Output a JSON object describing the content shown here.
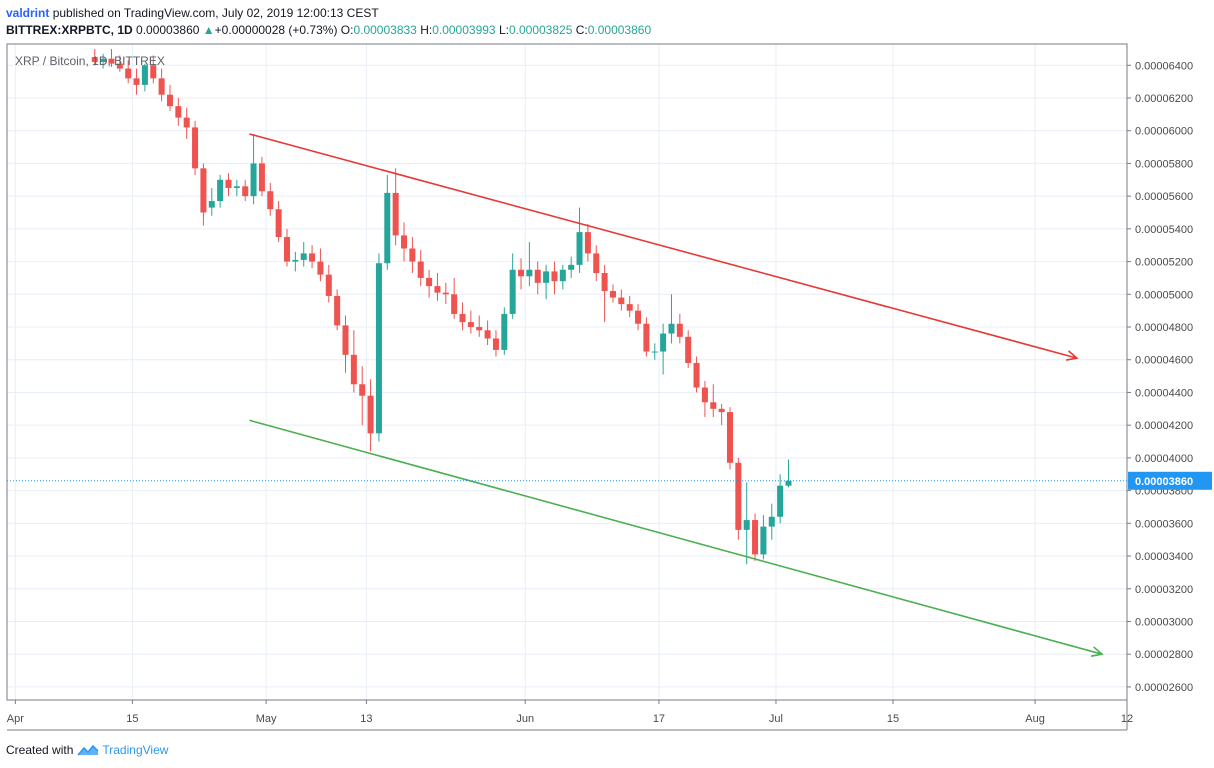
{
  "header": {
    "author": "valdrint",
    "published_text": "published on TradingView.com, July 02, 2019 12:00:13 CEST",
    "symbol": "BITTREX:XRPBTC, 1D",
    "last": "0.00003860",
    "change": "+0.00000028 (+0.73%)",
    "o_label": "O:",
    "o_value": "0.00003833",
    "h_label": "H:",
    "h_value": "0.00003993",
    "l_label": "L:",
    "l_value": "0.00003825",
    "c_label": "C:",
    "c_value": "0.00003860"
  },
  "footer": {
    "created_with": "Created with",
    "brand": "TradingView"
  },
  "colors": {
    "up": "#26a69a",
    "down": "#ef5350",
    "resistance": "#e53935",
    "support": "#4caf50",
    "grid": "#e8eef6",
    "price_line": "#2196f3"
  },
  "chart_data": {
    "type": "candlestick",
    "legend": "XRP / Bitcoin, 1D, BITTREX",
    "y_ticks": [
      "0.00006400",
      "0.00006200",
      "0.00006000",
      "0.00005800",
      "0.00005600",
      "0.00005400",
      "0.00005200",
      "0.00005000",
      "0.00004800",
      "0.00004600",
      "0.00004400",
      "0.00004200",
      "0.00004000",
      "0.00003800",
      "0.00003600",
      "0.00003400",
      "0.00003200",
      "0.00003000",
      "0.00002800",
      "0.00002600"
    ],
    "ylim": [
      2.52e-05,
      6.53e-05
    ],
    "xlim": [
      "2019-03-31",
      "2019-08-12"
    ],
    "x_ticks": [
      {
        "date": "2019-04-01",
        "label": "Apr"
      },
      {
        "date": "2019-04-15",
        "label": "15"
      },
      {
        "date": "2019-05-01",
        "label": "May"
      },
      {
        "date": "2019-05-13",
        "label": "13"
      },
      {
        "date": "2019-06-01",
        "label": "Jun"
      },
      {
        "date": "2019-06-17",
        "label": "17"
      },
      {
        "date": "2019-07-01",
        "label": "Jul"
      },
      {
        "date": "2019-07-15",
        "label": "15"
      },
      {
        "date": "2019-08-01",
        "label": "Aug"
      },
      {
        "date": "2019-08-12",
        "label": "12"
      }
    ],
    "last_price": "0.00003860",
    "candles": [
      {
        "date": "2019-04-10",
        "o": 6.45e-05,
        "h": 6.5e-05,
        "l": 6.4e-05,
        "c": 6.42e-05
      },
      {
        "date": "2019-04-11",
        "o": 6.42e-05,
        "h": 6.47e-05,
        "l": 6.38e-05,
        "c": 6.44e-05
      },
      {
        "date": "2019-04-12",
        "o": 6.44e-05,
        "h": 6.5e-05,
        "l": 6.39e-05,
        "c": 6.41e-05
      },
      {
        "date": "2019-04-13",
        "o": 6.41e-05,
        "h": 6.46e-05,
        "l": 6.36e-05,
        "c": 6.38e-05
      },
      {
        "date": "2019-04-14",
        "o": 6.38e-05,
        "h": 6.43e-05,
        "l": 6.29e-05,
        "c": 6.32e-05
      },
      {
        "date": "2019-04-15",
        "o": 6.32e-05,
        "h": 6.38e-05,
        "l": 6.22e-05,
        "c": 6.28e-05
      },
      {
        "date": "2019-04-16",
        "o": 6.28e-05,
        "h": 6.41e-05,
        "l": 6.24e-05,
        "c": 6.4e-05
      },
      {
        "date": "2019-04-17",
        "o": 6.4e-05,
        "h": 6.46e-05,
        "l": 6.29e-05,
        "c": 6.32e-05
      },
      {
        "date": "2019-04-18",
        "o": 6.32e-05,
        "h": 6.38e-05,
        "l": 6.18e-05,
        "c": 6.22e-05
      },
      {
        "date": "2019-04-19",
        "o": 6.22e-05,
        "h": 6.28e-05,
        "l": 6.12e-05,
        "c": 6.15e-05
      },
      {
        "date": "2019-04-20",
        "o": 6.15e-05,
        "h": 6.2e-05,
        "l": 6.03e-05,
        "c": 6.08e-05
      },
      {
        "date": "2019-04-21",
        "o": 6.08e-05,
        "h": 6.14e-05,
        "l": 5.95e-05,
        "c": 6.02e-05
      },
      {
        "date": "2019-04-22",
        "o": 6.02e-05,
        "h": 6.06e-05,
        "l": 5.73e-05,
        "c": 5.77e-05
      },
      {
        "date": "2019-04-23",
        "o": 5.77e-05,
        "h": 5.8e-05,
        "l": 5.42e-05,
        "c": 5.5e-05
      },
      {
        "date": "2019-04-24",
        "o": 5.53e-05,
        "h": 5.65e-05,
        "l": 5.48e-05,
        "c": 5.57e-05
      },
      {
        "date": "2019-04-25",
        "o": 5.57e-05,
        "h": 5.73e-05,
        "l": 5.53e-05,
        "c": 5.7e-05
      },
      {
        "date": "2019-04-26",
        "o": 5.7e-05,
        "h": 5.74e-05,
        "l": 5.6e-05,
        "c": 5.65e-05
      },
      {
        "date": "2019-04-27",
        "o": 5.65e-05,
        "h": 5.7e-05,
        "l": 5.6e-05,
        "c": 5.66e-05
      },
      {
        "date": "2019-04-28",
        "o": 5.66e-05,
        "h": 5.7e-05,
        "l": 5.57e-05,
        "c": 5.6e-05
      },
      {
        "date": "2019-04-29",
        "o": 5.6e-05,
        "h": 5.98e-05,
        "l": 5.55e-05,
        "c": 5.8e-05
      },
      {
        "date": "2019-04-30",
        "o": 5.8e-05,
        "h": 5.84e-05,
        "l": 5.6e-05,
        "c": 5.63e-05
      },
      {
        "date": "2019-05-01",
        "o": 5.63e-05,
        "h": 5.68e-05,
        "l": 5.48e-05,
        "c": 5.52e-05
      },
      {
        "date": "2019-05-02",
        "o": 5.52e-05,
        "h": 5.57e-05,
        "l": 5.32e-05,
        "c": 5.35e-05
      },
      {
        "date": "2019-05-03",
        "o": 5.35e-05,
        "h": 5.4e-05,
        "l": 5.17e-05,
        "c": 5.2e-05
      },
      {
        "date": "2019-05-04",
        "o": 5.2e-05,
        "h": 5.26e-05,
        "l": 5.14e-05,
        "c": 5.21e-05
      },
      {
        "date": "2019-05-05",
        "o": 5.21e-05,
        "h": 5.32e-05,
        "l": 5.17e-05,
        "c": 5.25e-05
      },
      {
        "date": "2019-05-06",
        "o": 5.25e-05,
        "h": 5.3e-05,
        "l": 5.16e-05,
        "c": 5.2e-05
      },
      {
        "date": "2019-05-07",
        "o": 5.2e-05,
        "h": 5.28e-05,
        "l": 5.08e-05,
        "c": 5.12e-05
      },
      {
        "date": "2019-05-08",
        "o": 5.12e-05,
        "h": 5.18e-05,
        "l": 4.95e-05,
        "c": 4.99e-05
      },
      {
        "date": "2019-05-09",
        "o": 4.99e-05,
        "h": 5.03e-05,
        "l": 4.78e-05,
        "c": 4.81e-05
      },
      {
        "date": "2019-05-10",
        "o": 4.81e-05,
        "h": 4.87e-05,
        "l": 4.52e-05,
        "c": 4.63e-05
      },
      {
        "date": "2019-05-11",
        "o": 4.63e-05,
        "h": 4.78e-05,
        "l": 4.4e-05,
        "c": 4.45e-05
      },
      {
        "date": "2019-05-12",
        "o": 4.45e-05,
        "h": 4.56e-05,
        "l": 4.2e-05,
        "c": 4.38e-05
      },
      {
        "date": "2019-05-13",
        "o": 4.38e-05,
        "h": 4.48e-05,
        "l": 4.04e-05,
        "c": 4.15e-05
      },
      {
        "date": "2019-05-14",
        "o": 4.15e-05,
        "h": 5.25e-05,
        "l": 4.1e-05,
        "c": 5.19e-05
      },
      {
        "date": "2019-05-15",
        "o": 5.19e-05,
        "h": 5.73e-05,
        "l": 5.15e-05,
        "c": 5.62e-05
      },
      {
        "date": "2019-05-16",
        "o": 5.62e-05,
        "h": 5.77e-05,
        "l": 5.3e-05,
        "c": 5.36e-05
      },
      {
        "date": "2019-05-17",
        "o": 5.36e-05,
        "h": 5.44e-05,
        "l": 5.2e-05,
        "c": 5.28e-05
      },
      {
        "date": "2019-05-18",
        "o": 5.28e-05,
        "h": 5.35e-05,
        "l": 5.13e-05,
        "c": 5.2e-05
      },
      {
        "date": "2019-05-19",
        "o": 5.2e-05,
        "h": 5.27e-05,
        "l": 5.05e-05,
        "c": 5.1e-05
      },
      {
        "date": "2019-05-20",
        "o": 5.1e-05,
        "h": 5.15e-05,
        "l": 4.98e-05,
        "c": 5.05e-05
      },
      {
        "date": "2019-05-21",
        "o": 5.05e-05,
        "h": 5.13e-05,
        "l": 4.96e-05,
        "c": 5.01e-05
      },
      {
        "date": "2019-05-22",
        "o": 5.01e-05,
        "h": 5.07e-05,
        "l": 4.94e-05,
        "c": 5e-05
      },
      {
        "date": "2019-05-23",
        "o": 5e-05,
        "h": 5.1e-05,
        "l": 4.85e-05,
        "c": 4.88e-05
      },
      {
        "date": "2019-05-24",
        "o": 4.88e-05,
        "h": 4.95e-05,
        "l": 4.78e-05,
        "c": 4.83e-05
      },
      {
        "date": "2019-05-25",
        "o": 4.83e-05,
        "h": 4.9e-05,
        "l": 4.76e-05,
        "c": 4.8e-05
      },
      {
        "date": "2019-05-26",
        "o": 4.8e-05,
        "h": 4.87e-05,
        "l": 4.74e-05,
        "c": 4.78e-05
      },
      {
        "date": "2019-05-27",
        "o": 4.78e-05,
        "h": 4.84e-05,
        "l": 4.69e-05,
        "c": 4.73e-05
      },
      {
        "date": "2019-05-28",
        "o": 4.73e-05,
        "h": 4.78e-05,
        "l": 4.62e-05,
        "c": 4.66e-05
      },
      {
        "date": "2019-05-29",
        "o": 4.66e-05,
        "h": 4.92e-05,
        "l": 4.63e-05,
        "c": 4.88e-05
      },
      {
        "date": "2019-05-30",
        "o": 4.88e-05,
        "h": 5.25e-05,
        "l": 4.85e-05,
        "c": 5.15e-05
      },
      {
        "date": "2019-05-31",
        "o": 5.15e-05,
        "h": 5.22e-05,
        "l": 5.03e-05,
        "c": 5.11e-05
      },
      {
        "date": "2019-06-01",
        "o": 5.11e-05,
        "h": 5.32e-05,
        "l": 5.05e-05,
        "c": 5.15e-05
      },
      {
        "date": "2019-06-02",
        "o": 5.15e-05,
        "h": 5.2e-05,
        "l": 5e-05,
        "c": 5.07e-05
      },
      {
        "date": "2019-06-03",
        "o": 5.07e-05,
        "h": 5.18e-05,
        "l": 4.97e-05,
        "c": 5.14e-05
      },
      {
        "date": "2019-06-04",
        "o": 5.14e-05,
        "h": 5.2e-05,
        "l": 5e-05,
        "c": 5.08e-05
      },
      {
        "date": "2019-06-05",
        "o": 5.08e-05,
        "h": 5.18e-05,
        "l": 5.03e-05,
        "c": 5.15e-05
      },
      {
        "date": "2019-06-06",
        "o": 5.15e-05,
        "h": 5.23e-05,
        "l": 5.1e-05,
        "c": 5.18e-05
      },
      {
        "date": "2019-06-07",
        "o": 5.18e-05,
        "h": 5.53e-05,
        "l": 5.13e-05,
        "c": 5.38e-05
      },
      {
        "date": "2019-06-08",
        "o": 5.38e-05,
        "h": 5.43e-05,
        "l": 5.2e-05,
        "c": 5.25e-05
      },
      {
        "date": "2019-06-09",
        "o": 5.25e-05,
        "h": 5.3e-05,
        "l": 5.08e-05,
        "c": 5.13e-05
      },
      {
        "date": "2019-06-10",
        "o": 5.13e-05,
        "h": 5.18e-05,
        "l": 4.83e-05,
        "c": 5.02e-05
      },
      {
        "date": "2019-06-11",
        "o": 5.02e-05,
        "h": 5.06e-05,
        "l": 4.95e-05,
        "c": 4.98e-05
      },
      {
        "date": "2019-06-12",
        "o": 4.98e-05,
        "h": 5.03e-05,
        "l": 4.9e-05,
        "c": 4.94e-05
      },
      {
        "date": "2019-06-13",
        "o": 4.94e-05,
        "h": 4.99e-05,
        "l": 4.86e-05,
        "c": 4.9e-05
      },
      {
        "date": "2019-06-14",
        "o": 4.9e-05,
        "h": 4.94e-05,
        "l": 4.78e-05,
        "c": 4.82e-05
      },
      {
        "date": "2019-06-15",
        "o": 4.82e-05,
        "h": 4.86e-05,
        "l": 4.62e-05,
        "c": 4.65e-05
      },
      {
        "date": "2019-06-16",
        "o": 4.65e-05,
        "h": 4.7e-05,
        "l": 4.6e-05,
        "c": 4.65e-05
      },
      {
        "date": "2019-06-17",
        "o": 4.65e-05,
        "h": 4.82e-05,
        "l": 4.51e-05,
        "c": 4.76e-05
      },
      {
        "date": "2019-06-18",
        "o": 4.76e-05,
        "h": 5e-05,
        "l": 4.7e-05,
        "c": 4.82e-05
      },
      {
        "date": "2019-06-19",
        "o": 4.82e-05,
        "h": 4.88e-05,
        "l": 4.7e-05,
        "c": 4.74e-05
      },
      {
        "date": "2019-06-20",
        "o": 4.74e-05,
        "h": 4.78e-05,
        "l": 4.55e-05,
        "c": 4.58e-05
      },
      {
        "date": "2019-06-21",
        "o": 4.58e-05,
        "h": 4.62e-05,
        "l": 4.4e-05,
        "c": 4.43e-05
      },
      {
        "date": "2019-06-22",
        "o": 4.43e-05,
        "h": 4.47e-05,
        "l": 4.25e-05,
        "c": 4.34e-05
      },
      {
        "date": "2019-06-23",
        "o": 4.34e-05,
        "h": 4.45e-05,
        "l": 4.25e-05,
        "c": 4.3e-05
      },
      {
        "date": "2019-06-24",
        "o": 4.3e-05,
        "h": 4.33e-05,
        "l": 4.2e-05,
        "c": 4.28e-05
      },
      {
        "date": "2019-06-25",
        "o": 4.28e-05,
        "h": 4.31e-05,
        "l": 3.93e-05,
        "c": 3.97e-05
      },
      {
        "date": "2019-06-26",
        "o": 3.97e-05,
        "h": 4e-05,
        "l": 3.5e-05,
        "c": 3.56e-05
      },
      {
        "date": "2019-06-27",
        "o": 3.56e-05,
        "h": 3.85e-05,
        "l": 3.35e-05,
        "c": 3.62e-05
      },
      {
        "date": "2019-06-28",
        "o": 3.62e-05,
        "h": 3.66e-05,
        "l": 3.37e-05,
        "c": 3.41e-05
      },
      {
        "date": "2019-06-29",
        "o": 3.41e-05,
        "h": 3.65e-05,
        "l": 3.38e-05,
        "c": 3.58e-05
      },
      {
        "date": "2019-06-30",
        "o": 3.58e-05,
        "h": 3.72e-05,
        "l": 3.5e-05,
        "c": 3.64e-05
      },
      {
        "date": "2019-07-01",
        "o": 3.64e-05,
        "h": 3.9e-05,
        "l": 3.6e-05,
        "c": 3.83e-05
      },
      {
        "date": "2019-07-02",
        "o": 3.83e-05,
        "h": 3.99e-05,
        "l": 3.82e-05,
        "c": 3.86e-05
      }
    ],
    "trendlines": [
      {
        "name": "resistance",
        "start": {
          "date": "2019-04-29",
          "price": 5.98e-05
        },
        "end": {
          "date": "2019-08-06",
          "price": 4.61e-05
        },
        "arrow": true
      },
      {
        "name": "support",
        "start": {
          "date": "2019-04-29",
          "price": 4.23e-05
        },
        "end": {
          "date": "2019-08-09",
          "price": 2.8e-05
        },
        "arrow": true
      }
    ]
  }
}
